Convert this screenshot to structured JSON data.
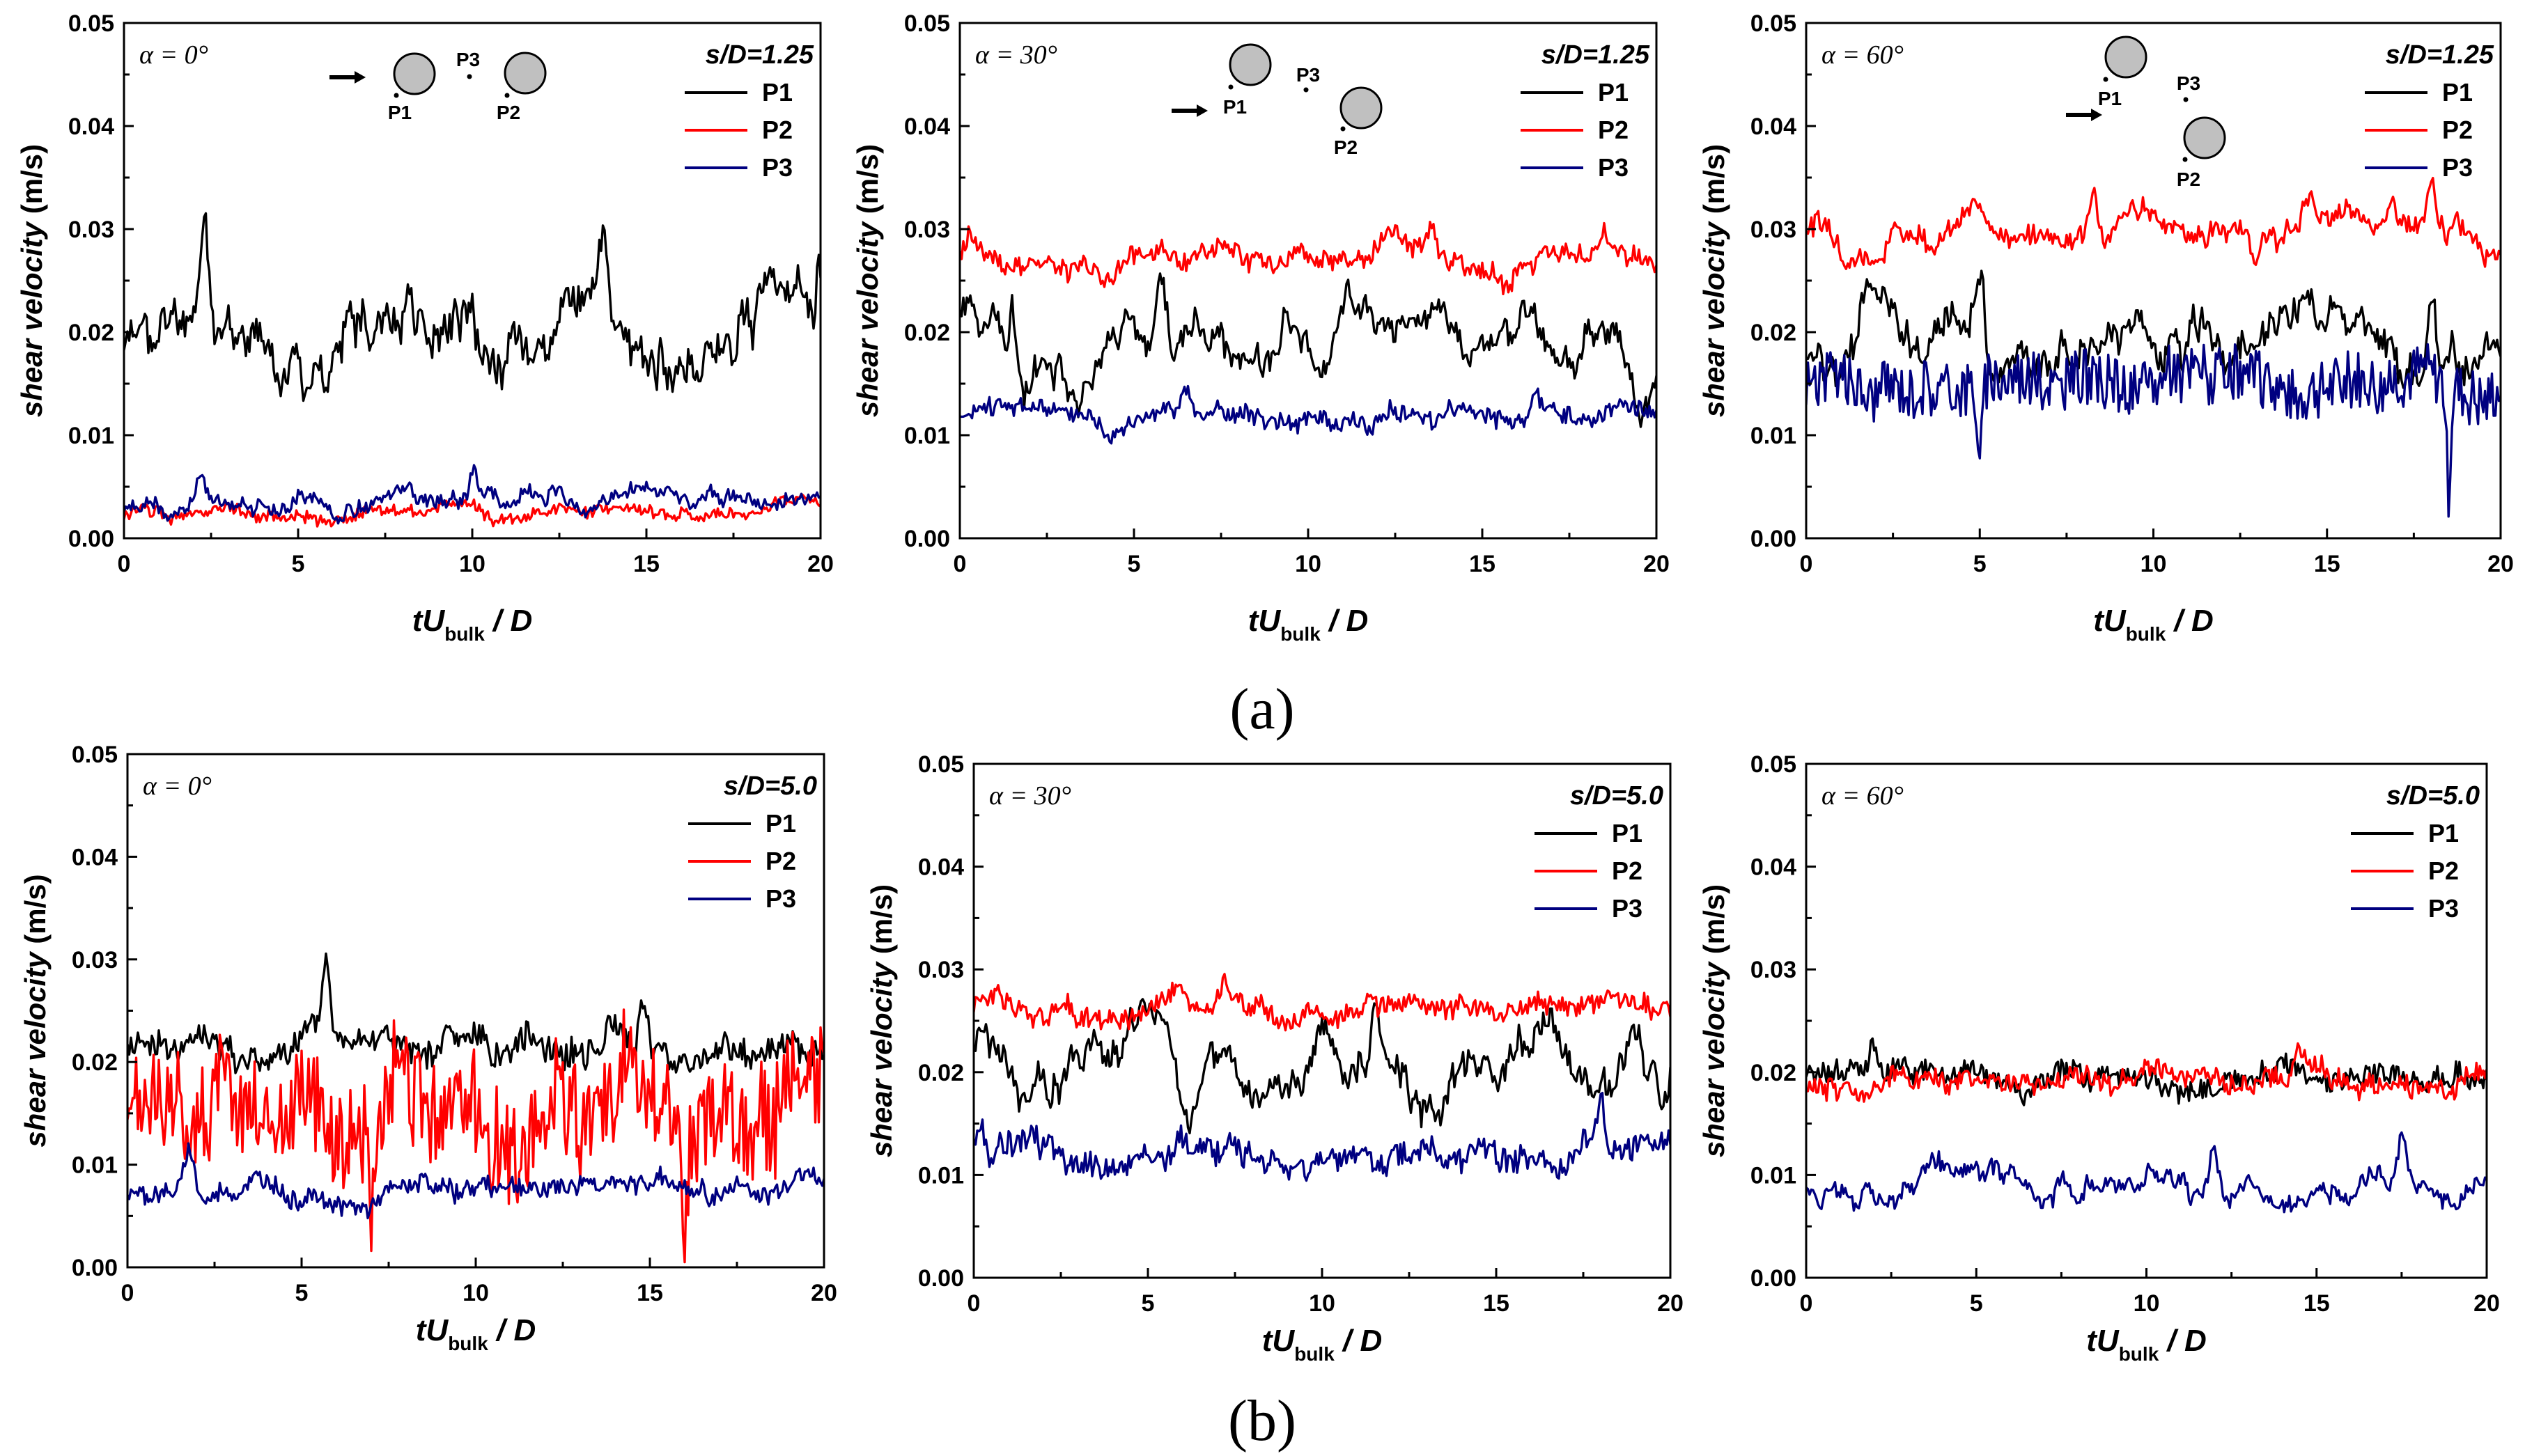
{
  "figure": {
    "caption_a": "(a)",
    "caption_b": "(b)"
  },
  "chart_data": [
    {
      "id": "a1",
      "type": "line",
      "row": "a",
      "alpha_label": "α = 0°",
      "sd_label": "s/D=1.25",
      "xlabel_main": "tU",
      "xlabel_sub": "bulk",
      "xlabel_tail": " / D",
      "ylabel_main": "shear velocity",
      "ylabel_unit": " (m/s)",
      "xlim": [
        0,
        20
      ],
      "ylim": [
        0,
        0.05
      ],
      "xticks": [
        0,
        5,
        10,
        15,
        20
      ],
      "yticks": [
        "0.00",
        "0.01",
        "0.02",
        "0.03",
        "0.04",
        "0.05"
      ],
      "legend": [
        "P1",
        "P2",
        "P3"
      ],
      "inset": "side-by-side",
      "inset_labels": [
        "P1",
        "P2",
        "P3"
      ],
      "series": [
        {
          "name": "P1",
          "color": "#000000",
          "base": 0.02,
          "amp": 0.0035,
          "noise": 0.0012,
          "peaks": [
            [
              2.3,
              0.029
            ],
            [
              8.2,
              0.026
            ],
            [
              13.7,
              0.026
            ],
            [
              20,
              0.027
            ]
          ],
          "seed": 11
        },
        {
          "name": "P2",
          "color": "#ff0000",
          "base": 0.0025,
          "amp": 0.0006,
          "noise": 0.0005,
          "peaks": [],
          "seed": 12
        },
        {
          "name": "P3",
          "color": "#000080",
          "base": 0.0035,
          "amp": 0.0009,
          "noise": 0.0006,
          "peaks": [
            [
              2.2,
              0.0065
            ],
            [
              10.0,
              0.006
            ]
          ],
          "seed": 13
        }
      ]
    },
    {
      "id": "a2",
      "type": "line",
      "row": "a",
      "alpha_label": "α = 30°",
      "sd_label": "s/D=1.25",
      "xlabel_main": "tU",
      "xlabel_sub": "bulk",
      "xlabel_tail": " / D",
      "ylabel_main": "shear velocity",
      "ylabel_unit": " (m/s)",
      "xlim": [
        0,
        20
      ],
      "ylim": [
        0,
        0.05
      ],
      "xticks": [
        0,
        5,
        10,
        15,
        20
      ],
      "yticks": [
        "0.00",
        "0.01",
        "0.02",
        "0.03",
        "0.04",
        "0.05"
      ],
      "legend": [
        "P1",
        "P2",
        "P3"
      ],
      "inset": "tandem-30",
      "inset_labels": [
        "P1",
        "P2",
        "P3"
      ],
      "series": [
        {
          "name": "P1",
          "color": "#000000",
          "base": 0.0195,
          "amp": 0.003,
          "noise": 0.0008,
          "peaks": [
            [
              1.5,
              0.024
            ],
            [
              5.8,
              0.025
            ]
          ],
          "seed": 21
        },
        {
          "name": "P2",
          "color": "#ff0000",
          "base": 0.027,
          "amp": 0.0012,
          "noise": 0.0008,
          "peaks": [
            [
              0.3,
              0.029
            ],
            [
              13.5,
              0.03
            ],
            [
              18.5,
              0.029
            ]
          ],
          "seed": 22
        },
        {
          "name": "P3",
          "color": "#000080",
          "base": 0.012,
          "amp": 0.0008,
          "noise": 0.0008,
          "peaks": [
            [
              6.5,
              0.0145
            ],
            [
              16.5,
              0.0145
            ]
          ],
          "seed": 23
        }
      ]
    },
    {
      "id": "a3",
      "type": "line",
      "row": "a",
      "alpha_label": "α = 60°",
      "sd_label": "s/D=1.25",
      "xlabel_main": "tU",
      "xlabel_sub": "bulk",
      "xlabel_tail": " / D",
      "ylabel_main": "shear velocity",
      "ylabel_unit": " (m/s)",
      "xlim": [
        0,
        20
      ],
      "ylim": [
        0,
        0.05
      ],
      "xticks": [
        0,
        5,
        10,
        15,
        20
      ],
      "yticks": [
        "0.00",
        "0.01",
        "0.02",
        "0.03",
        "0.04",
        "0.05"
      ],
      "legend": [
        "P1",
        "P2",
        "P3"
      ],
      "inset": "tandem-60",
      "inset_labels": [
        "P1",
        "P2",
        "P3"
      ],
      "series": [
        {
          "name": "P1",
          "color": "#000000",
          "base": 0.0185,
          "amp": 0.003,
          "noise": 0.001,
          "peaks": [
            [
              1.8,
              0.025
            ],
            [
              5.0,
              0.026
            ],
            [
              18.0,
              0.026
            ]
          ],
          "seed": 31
        },
        {
          "name": "P2",
          "color": "#ff0000",
          "base": 0.03,
          "amp": 0.0015,
          "noise": 0.0008,
          "peaks": [
            [
              8.3,
              0.034
            ],
            [
              14.5,
              0.0335
            ],
            [
              18.0,
              0.0335
            ]
          ],
          "seed": 32
        },
        {
          "name": "P3",
          "color": "#000080",
          "base": 0.015,
          "amp": 0.001,
          "noise": 0.0028,
          "peaks": [],
          "dips": [
            [
              5.0,
              0.0065
            ],
            [
              18.5,
              0.0055
            ]
          ],
          "seed": 33
        }
      ]
    },
    {
      "id": "b1",
      "type": "line",
      "row": "b",
      "alpha_label": "α = 0°",
      "sd_label": "s/D=5.0",
      "xlabel_main": "tU",
      "xlabel_sub": "bulk",
      "xlabel_tail": " / D",
      "ylabel_main": "shear velocity",
      "ylabel_unit": " (m/s)",
      "xlim": [
        0,
        20
      ],
      "ylim": [
        0,
        0.05
      ],
      "xticks": [
        0,
        5,
        10,
        15,
        20
      ],
      "yticks": [
        "0.00",
        "0.01",
        "0.02",
        "0.03",
        "0.04",
        "0.05"
      ],
      "legend": [
        "P1",
        "P2",
        "P3"
      ],
      "inset": "none",
      "series": [
        {
          "name": "P1",
          "color": "#000000",
          "base": 0.021,
          "amp": 0.0015,
          "noise": 0.0012,
          "peaks": [
            [
              5.7,
              0.0285
            ],
            [
              14.8,
              0.0265
            ]
          ],
          "seed": 41
        },
        {
          "name": "P2",
          "color": "#ff0000",
          "base": 0.015,
          "amp": 0.003,
          "noise": 0.005,
          "peaks": [],
          "dips": [
            [
              7.0,
              0.002
            ],
            [
              16.0,
              0.003
            ]
          ],
          "seed": 42
        },
        {
          "name": "P3",
          "color": "#000080",
          "base": 0.0075,
          "amp": 0.001,
          "noise": 0.0008,
          "peaks": [
            [
              1.8,
              0.0115
            ]
          ],
          "seed": 43
        }
      ]
    },
    {
      "id": "b2",
      "type": "line",
      "row": "b",
      "alpha_label": "α = 30°",
      "sd_label": "s/D=5.0",
      "xlabel_main": "tU",
      "xlabel_sub": "bulk",
      "xlabel_tail": " / D",
      "ylabel_main": "shear velocity",
      "ylabel_unit": " (m/s)",
      "xlim": [
        0,
        20
      ],
      "ylim": [
        0,
        0.05
      ],
      "xticks": [
        0,
        5,
        10,
        15,
        20
      ],
      "yticks": [
        "0.00",
        "0.01",
        "0.02",
        "0.03",
        "0.04",
        "0.05"
      ],
      "legend": [
        "P1",
        "P2",
        "P3"
      ],
      "inset": "none",
      "series": [
        {
          "name": "P1",
          "color": "#000000",
          "base": 0.02,
          "amp": 0.003,
          "noise": 0.0009,
          "peaks": [
            [
              11.5,
              0.026
            ]
          ],
          "seed": 51
        },
        {
          "name": "P2",
          "color": "#ff0000",
          "base": 0.026,
          "amp": 0.001,
          "noise": 0.0009,
          "peaks": [
            [
              7.2,
              0.029
            ]
          ],
          "seed": 52
        },
        {
          "name": "P3",
          "color": "#000080",
          "base": 0.012,
          "amp": 0.0012,
          "noise": 0.0012,
          "peaks": [
            [
              0.2,
              0.016
            ],
            [
              18.0,
              0.017
            ]
          ],
          "seed": 53
        }
      ]
    },
    {
      "id": "b3",
      "type": "line",
      "row": "b",
      "alpha_label": "α = 60°",
      "sd_label": "s/D=5.0",
      "xlabel_main": "tU",
      "xlabel_sub": "bulk",
      "xlabel_tail": " / D",
      "ylabel_main": "shear velocity",
      "ylabel_unit": " (m/s)",
      "xlim": [
        0,
        20
      ],
      "ylim": [
        0,
        0.05
      ],
      "xticks": [
        0,
        5,
        10,
        15,
        20
      ],
      "yticks": [
        "0.00",
        "0.01",
        "0.02",
        "0.03",
        "0.04",
        "0.05"
      ],
      "legend": [
        "P1",
        "P2",
        "P3"
      ],
      "inset": "none",
      "series": [
        {
          "name": "P1",
          "color": "#000000",
          "base": 0.0195,
          "amp": 0.0008,
          "noise": 0.001,
          "peaks": [
            [
              2.0,
              0.023
            ]
          ],
          "seed": 61
        },
        {
          "name": "P2",
          "color": "#ff0000",
          "base": 0.019,
          "amp": 0.0008,
          "noise": 0.0009,
          "peaks": [
            [
              14.5,
              0.022
            ]
          ],
          "seed": 62
        },
        {
          "name": "P3",
          "color": "#000080",
          "base": 0.009,
          "amp": 0.0012,
          "noise": 0.0007,
          "peaks": [
            [
              7.5,
              0.0128
            ],
            [
              12.0,
              0.0133
            ],
            [
              17.5,
              0.0125
            ]
          ],
          "seed": 63
        }
      ]
    }
  ]
}
